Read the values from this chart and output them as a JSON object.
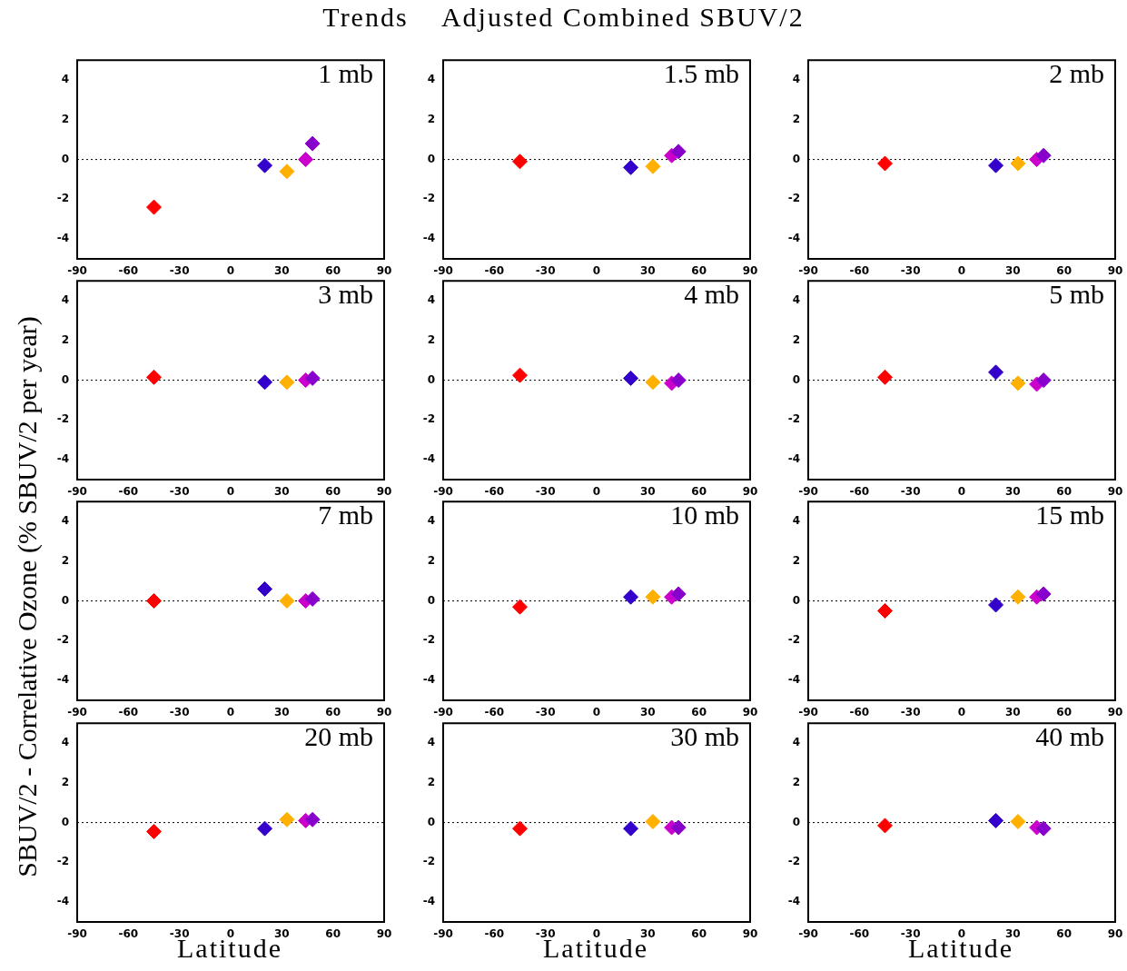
{
  "chart_data": [
    {
      "type": "scatter",
      "title": "Trends    Adjusted Combined SBUV/2",
      "ylabel": "SBUV/2 - Correlative Ozone (% SBUV/2 per year)",
      "annotations": [
        "1 mb"
      ],
      "x": [
        -45,
        20,
        33,
        44,
        48
      ],
      "values": [
        -2.4,
        -0.3,
        -0.6,
        0.0,
        0.8
      ],
      "colors": [
        "#ff0000",
        "#3300cc",
        "#ffb000",
        "#cc00cc",
        "#8800cc"
      ],
      "marker": "diamond",
      "xlim": [
        -90,
        90
      ],
      "xticks": [
        -90,
        -60,
        -30,
        0,
        30,
        60,
        90
      ],
      "ylim": [
        -5,
        5
      ],
      "yticks": [
        -4,
        -2,
        0,
        2,
        4
      ],
      "ref_lines": [
        {
          "axis": "y",
          "value": 0,
          "line_style": "dotted"
        }
      ]
    },
    {
      "type": "scatter",
      "annotations": [
        "1.5 mb"
      ],
      "x": [
        -45,
        20,
        33,
        44,
        48
      ],
      "values": [
        -0.1,
        -0.4,
        -0.35,
        0.2,
        0.4
      ],
      "colors": [
        "#ff0000",
        "#3300cc",
        "#ffb000",
        "#cc00cc",
        "#8800cc"
      ],
      "marker": "diamond",
      "xlim": [
        -90,
        90
      ],
      "xticks": [
        -90,
        -60,
        -30,
        0,
        30,
        60,
        90
      ],
      "ylim": [
        -5,
        5
      ],
      "yticks": [
        -4,
        -2,
        0,
        2,
        4
      ],
      "ref_lines": [
        {
          "axis": "y",
          "value": 0,
          "line_style": "dotted"
        }
      ]
    },
    {
      "type": "scatter",
      "annotations": [
        "2 mb"
      ],
      "x": [
        -45,
        20,
        33,
        44,
        48
      ],
      "values": [
        -0.2,
        -0.3,
        -0.2,
        0.0,
        0.2
      ],
      "colors": [
        "#ff0000",
        "#3300cc",
        "#ffb000",
        "#cc00cc",
        "#8800cc"
      ],
      "marker": "diamond",
      "xlim": [
        -90,
        90
      ],
      "xticks": [
        -90,
        -60,
        -30,
        0,
        30,
        60,
        90
      ],
      "ylim": [
        -5,
        5
      ],
      "yticks": [
        -4,
        -2,
        0,
        2,
        4
      ],
      "ref_lines": [
        {
          "axis": "y",
          "value": 0,
          "line_style": "dotted"
        }
      ]
    },
    {
      "type": "scatter",
      "annotations": [
        "3 mb"
      ],
      "x": [
        -45,
        20,
        33,
        44,
        48
      ],
      "values": [
        0.15,
        -0.1,
        -0.1,
        0.0,
        0.1
      ],
      "colors": [
        "#ff0000",
        "#3300cc",
        "#ffb000",
        "#cc00cc",
        "#8800cc"
      ],
      "marker": "diamond",
      "xlim": [
        -90,
        90
      ],
      "xticks": [
        -90,
        -60,
        -30,
        0,
        30,
        60,
        90
      ],
      "ylim": [
        -5,
        5
      ],
      "yticks": [
        -4,
        -2,
        0,
        2,
        4
      ],
      "ref_lines": [
        {
          "axis": "y",
          "value": 0,
          "line_style": "dotted"
        }
      ]
    },
    {
      "type": "scatter",
      "annotations": [
        "4 mb"
      ],
      "x": [
        -45,
        20,
        33,
        44,
        48
      ],
      "values": [
        0.25,
        0.1,
        -0.1,
        -0.15,
        0.0
      ],
      "colors": [
        "#ff0000",
        "#3300cc",
        "#ffb000",
        "#cc00cc",
        "#8800cc"
      ],
      "marker": "diamond",
      "xlim": [
        -90,
        90
      ],
      "xticks": [
        -90,
        -60,
        -30,
        0,
        30,
        60,
        90
      ],
      "ylim": [
        -5,
        5
      ],
      "yticks": [
        -4,
        -2,
        0,
        2,
        4
      ],
      "ref_lines": [
        {
          "axis": "y",
          "value": 0,
          "line_style": "dotted"
        }
      ]
    },
    {
      "type": "scatter",
      "annotations": [
        "5 mb"
      ],
      "x": [
        -45,
        20,
        33,
        44,
        48
      ],
      "values": [
        0.15,
        0.4,
        -0.15,
        -0.2,
        0.0
      ],
      "colors": [
        "#ff0000",
        "#3300cc",
        "#ffb000",
        "#cc00cc",
        "#8800cc"
      ],
      "marker": "diamond",
      "xlim": [
        -90,
        90
      ],
      "xticks": [
        -90,
        -60,
        -30,
        0,
        30,
        60,
        90
      ],
      "ylim": [
        -5,
        5
      ],
      "yticks": [
        -4,
        -2,
        0,
        2,
        4
      ],
      "ref_lines": [
        {
          "axis": "y",
          "value": 0,
          "line_style": "dotted"
        }
      ]
    },
    {
      "type": "scatter",
      "annotations": [
        "7 mb"
      ],
      "x": [
        -45,
        20,
        33,
        44,
        48
      ],
      "values": [
        0.0,
        0.6,
        0.0,
        0.0,
        0.1
      ],
      "colors": [
        "#ff0000",
        "#3300cc",
        "#ffb000",
        "#cc00cc",
        "#8800cc"
      ],
      "marker": "diamond",
      "xlim": [
        -90,
        90
      ],
      "xticks": [
        -90,
        -60,
        -30,
        0,
        30,
        60,
        90
      ],
      "ylim": [
        -5,
        5
      ],
      "yticks": [
        -4,
        -2,
        0,
        2,
        4
      ],
      "ref_lines": [
        {
          "axis": "y",
          "value": 0,
          "line_style": "dotted"
        }
      ]
    },
    {
      "type": "scatter",
      "annotations": [
        "10 mb"
      ],
      "x": [
        -45,
        20,
        33,
        44,
        48
      ],
      "values": [
        -0.3,
        0.2,
        0.2,
        0.2,
        0.35
      ],
      "colors": [
        "#ff0000",
        "#3300cc",
        "#ffb000",
        "#cc00cc",
        "#8800cc"
      ],
      "marker": "diamond",
      "xlim": [
        -90,
        90
      ],
      "xticks": [
        -90,
        -60,
        -30,
        0,
        30,
        60,
        90
      ],
      "ylim": [
        -5,
        5
      ],
      "yticks": [
        -4,
        -2,
        0,
        2,
        4
      ],
      "ref_lines": [
        {
          "axis": "y",
          "value": 0,
          "line_style": "dotted"
        }
      ]
    },
    {
      "type": "scatter",
      "annotations": [
        "15 mb"
      ],
      "x": [
        -45,
        20,
        33,
        44,
        48
      ],
      "values": [
        -0.5,
        -0.2,
        0.2,
        0.2,
        0.35
      ],
      "colors": [
        "#ff0000",
        "#3300cc",
        "#ffb000",
        "#cc00cc",
        "#8800cc"
      ],
      "marker": "diamond",
      "xlim": [
        -90,
        90
      ],
      "xticks": [
        -90,
        -60,
        -30,
        0,
        30,
        60,
        90
      ],
      "ylim": [
        -5,
        5
      ],
      "yticks": [
        -4,
        -2,
        0,
        2,
        4
      ],
      "ref_lines": [
        {
          "axis": "y",
          "value": 0,
          "line_style": "dotted"
        }
      ]
    },
    {
      "type": "scatter",
      "xlabel": "Latitude",
      "annotations": [
        "20 mb"
      ],
      "x": [
        -45,
        20,
        33,
        44,
        48
      ],
      "values": [
        -0.45,
        -0.3,
        0.15,
        0.1,
        0.15
      ],
      "colors": [
        "#ff0000",
        "#3300cc",
        "#ffb000",
        "#cc00cc",
        "#8800cc"
      ],
      "marker": "diamond",
      "xlim": [
        -90,
        90
      ],
      "xticks": [
        -90,
        -60,
        -30,
        0,
        30,
        60,
        90
      ],
      "ylim": [
        -5,
        5
      ],
      "yticks": [
        -4,
        -2,
        0,
        2,
        4
      ],
      "ref_lines": [
        {
          "axis": "y",
          "value": 0,
          "line_style": "dotted"
        }
      ]
    },
    {
      "type": "scatter",
      "xlabel": "Latitude",
      "annotations": [
        "30 mb"
      ],
      "x": [
        -45,
        20,
        33,
        44,
        48
      ],
      "values": [
        -0.3,
        -0.3,
        0.05,
        -0.25,
        -0.25
      ],
      "colors": [
        "#ff0000",
        "#3300cc",
        "#ffb000",
        "#cc00cc",
        "#8800cc"
      ],
      "marker": "diamond",
      "xlim": [
        -90,
        90
      ],
      "xticks": [
        -90,
        -60,
        -30,
        0,
        30,
        60,
        90
      ],
      "ylim": [
        -5,
        5
      ],
      "yticks": [
        -4,
        -2,
        0,
        2,
        4
      ],
      "ref_lines": [
        {
          "axis": "y",
          "value": 0,
          "line_style": "dotted"
        }
      ]
    },
    {
      "type": "scatter",
      "xlabel": "Latitude",
      "annotations": [
        "40 mb"
      ],
      "x": [
        -45,
        20,
        33,
        44,
        48
      ],
      "values": [
        -0.15,
        0.1,
        0.05,
        -0.25,
        -0.3
      ],
      "colors": [
        "#ff0000",
        "#3300cc",
        "#ffb000",
        "#cc00cc",
        "#8800cc"
      ],
      "marker": "diamond",
      "xlim": [
        -90,
        90
      ],
      "xticks": [
        -90,
        -60,
        -30,
        0,
        30,
        60,
        90
      ],
      "ylim": [
        -5,
        5
      ],
      "yticks": [
        -4,
        -2,
        0,
        2,
        4
      ],
      "ref_lines": [
        {
          "axis": "y",
          "value": 0,
          "line_style": "dotted"
        }
      ]
    }
  ]
}
